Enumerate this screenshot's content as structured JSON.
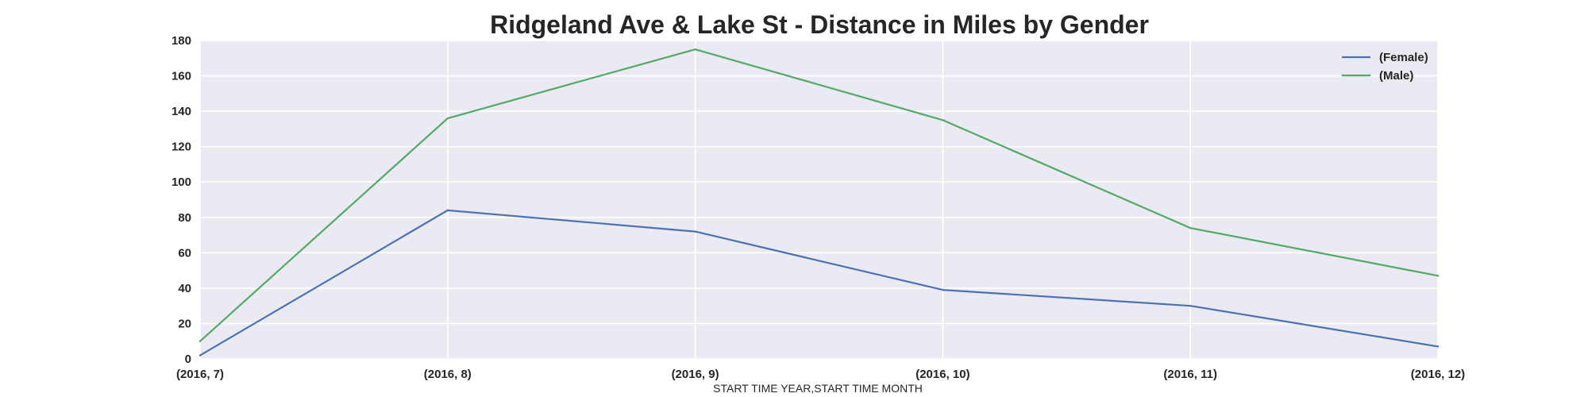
{
  "chart_data": {
    "type": "line",
    "title": "Ridgeland Ave & Lake St - Distance in Miles by Gender",
    "xlabel": "START TIME YEAR,START TIME MONTH",
    "ylabel": "",
    "categories": [
      "(2016, 7)",
      "(2016, 8)",
      "(2016, 9)",
      "(2016, 10)",
      "(2016, 11)",
      "(2016, 12)"
    ],
    "ylim": [
      0,
      180
    ],
    "yticks": [
      0,
      20,
      40,
      60,
      80,
      100,
      120,
      140,
      160,
      180
    ],
    "grid": true,
    "legend_position": "top-right",
    "background_color": "#eaeaf2",
    "series": [
      {
        "name": "(Female)",
        "color": "#4c72b0",
        "values": [
          2,
          84,
          72,
          39,
          30,
          7
        ]
      },
      {
        "name": "(Male)",
        "color": "#55a868",
        "values": [
          10,
          136,
          175,
          135,
          74,
          47
        ]
      }
    ]
  }
}
